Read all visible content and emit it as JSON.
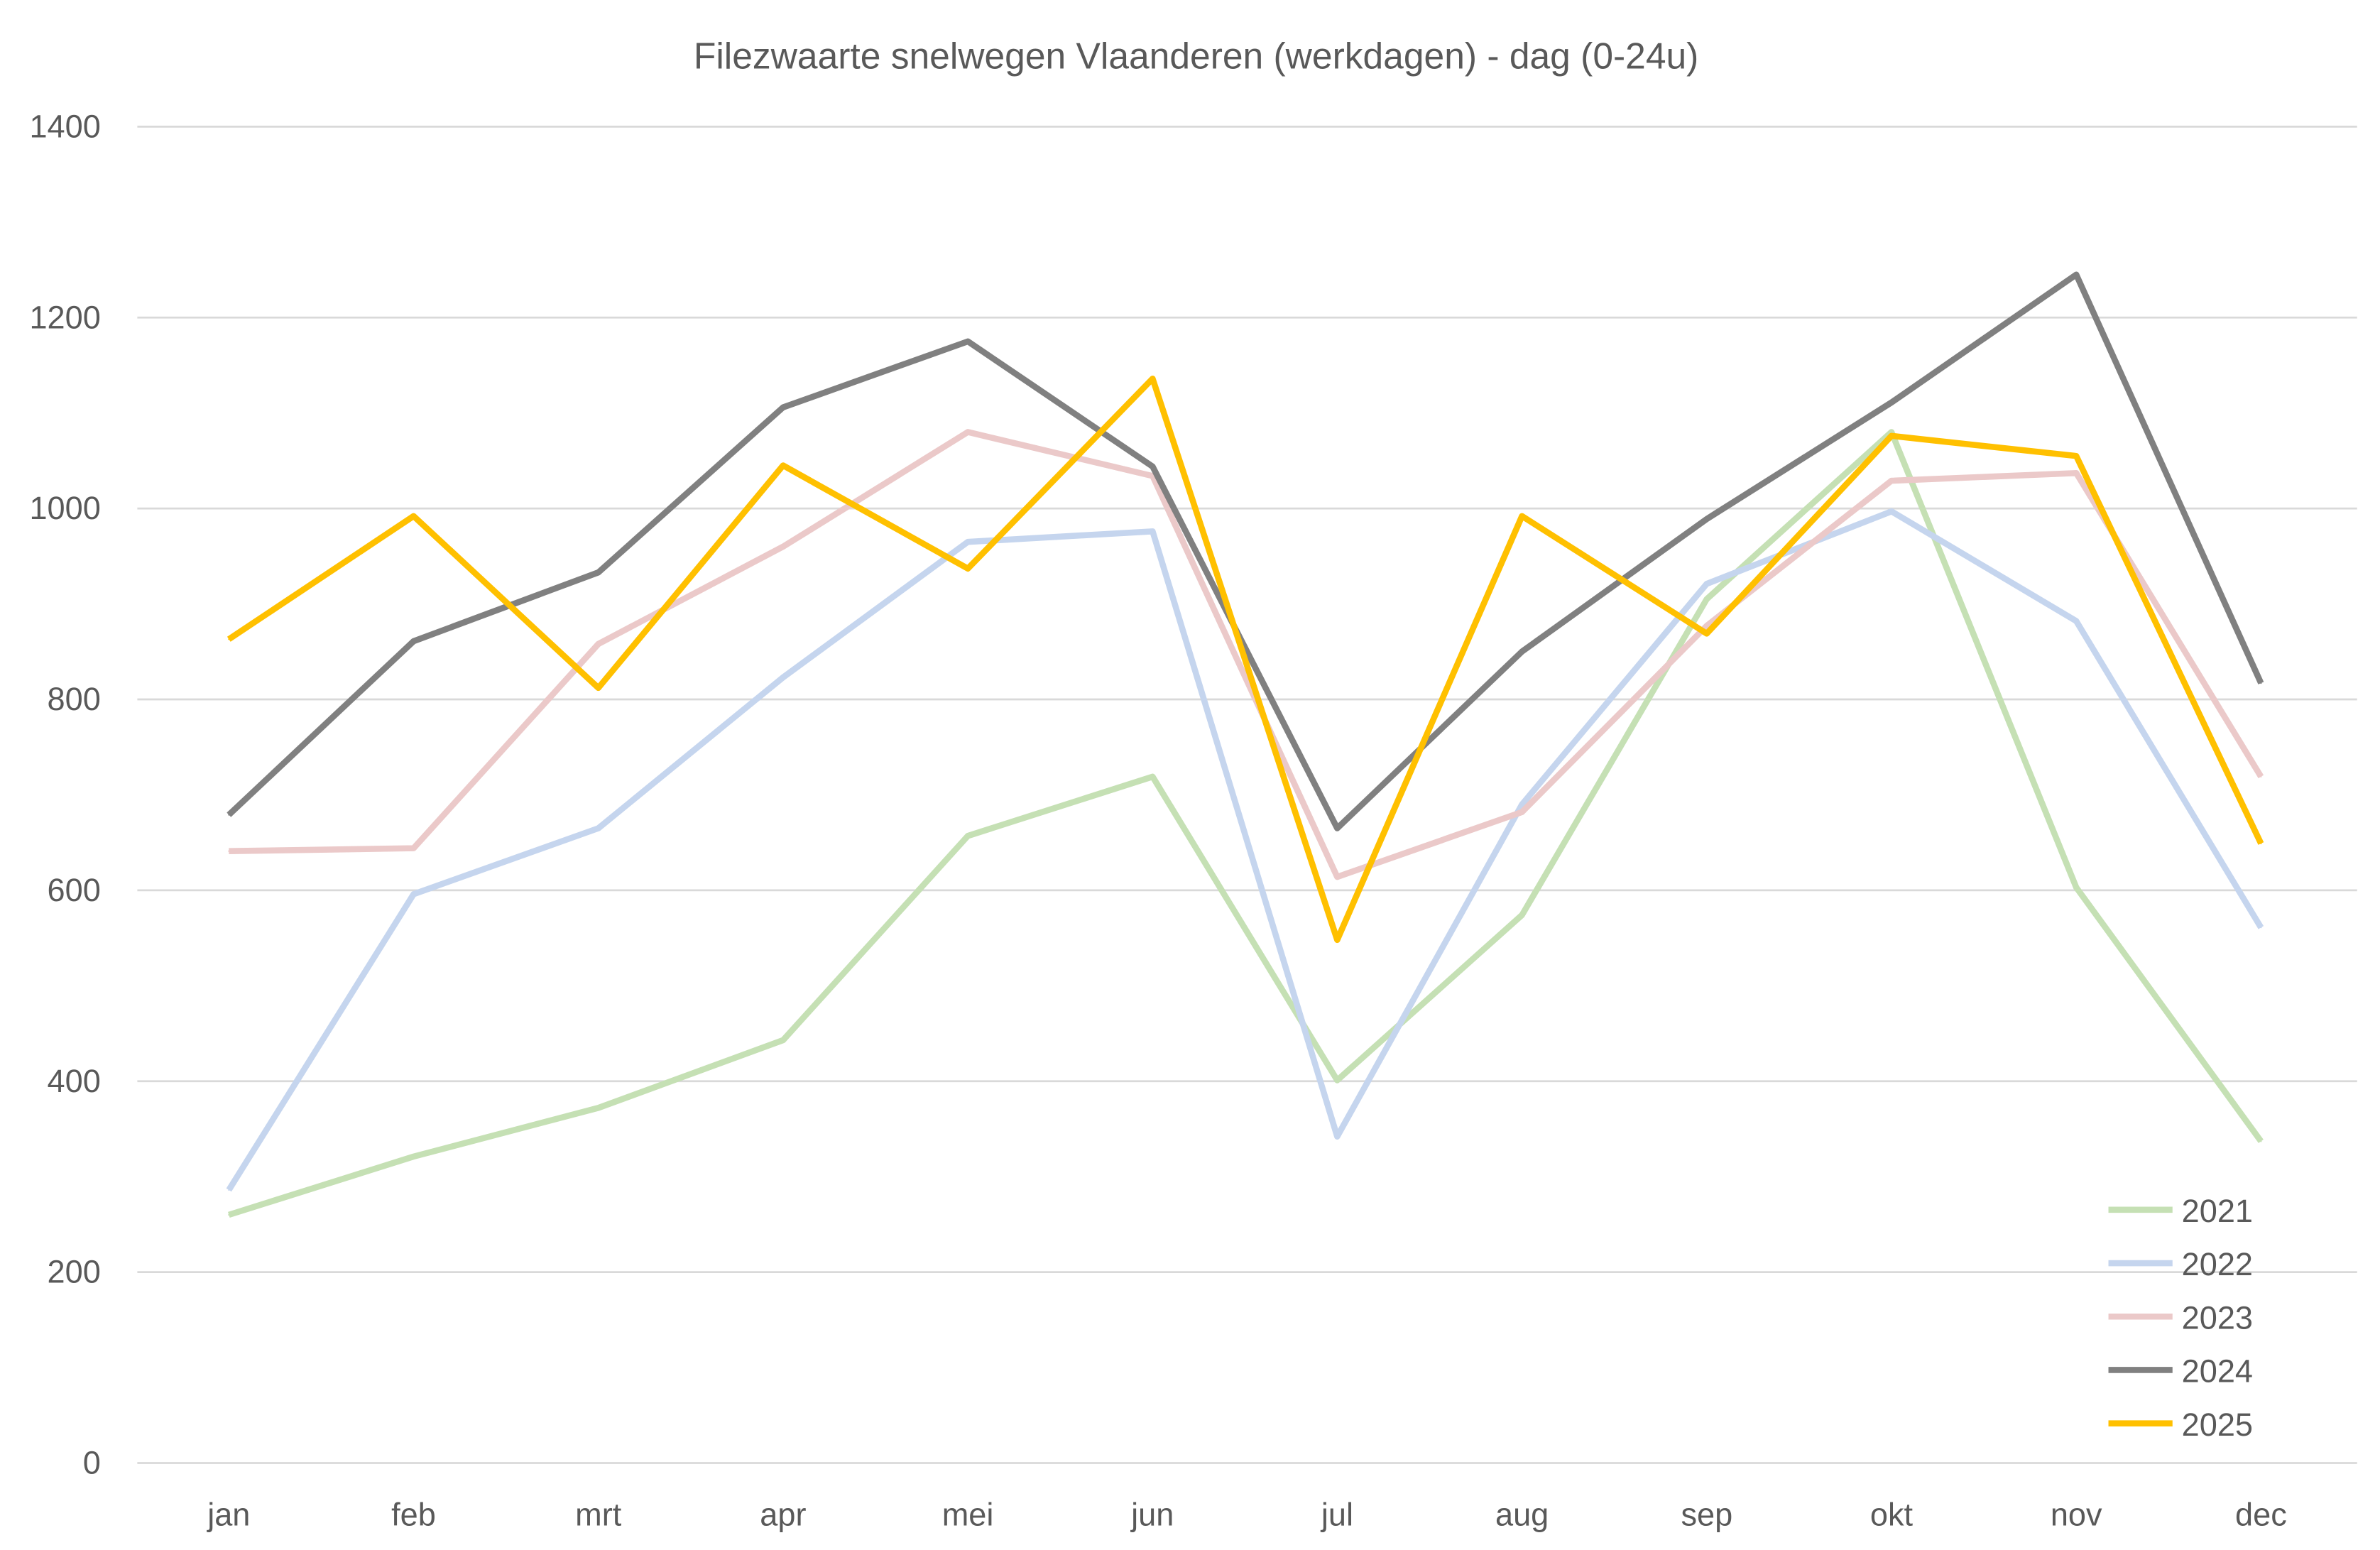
{
  "chart_data": {
    "type": "line",
    "title": "Filezwaarte snelwegen Vlaanderen (werkdagen) - dag (0-24u)",
    "xlabel": "",
    "ylabel": "",
    "categories": [
      "jan",
      "feb",
      "mrt",
      "apr",
      "mei",
      "jun",
      "jul",
      "aug",
      "sep",
      "okt",
      "nov",
      "dec"
    ],
    "ylim": [
      0,
      1400
    ],
    "yticks": [
      "0",
      "200",
      "400",
      "600",
      "800",
      "1000",
      "1200",
      "1400"
    ],
    "grid": true,
    "legend_position": "bottom-right",
    "series": [
      {
        "name": "2021",
        "color": "#c5e0b4",
        "values": [
          260,
          321,
          372,
          443,
          657,
          719,
          401,
          574,
          905,
          1080,
          603,
          337
        ]
      },
      {
        "name": "2022",
        "color": "#c5d5ee",
        "values": [
          286,
          596,
          665,
          823,
          965,
          976,
          342,
          690,
          921,
          997,
          882,
          561
        ]
      },
      {
        "name": "2023",
        "color": "#ebc9c9",
        "values": [
          641,
          644,
          858,
          960,
          1080,
          1034,
          614,
          682,
          877,
          1029,
          1037,
          719
        ]
      },
      {
        "name": "2024",
        "color": "#808080",
        "values": [
          679,
          861,
          933,
          1106,
          1175,
          1044,
          665,
          850,
          989,
          1111,
          1245,
          817
        ]
      },
      {
        "name": "2025",
        "color": "#ffc000",
        "values": [
          863,
          992,
          812,
          1045,
          937,
          1136,
          548,
          992,
          869,
          1076,
          1055,
          649
        ]
      }
    ]
  }
}
